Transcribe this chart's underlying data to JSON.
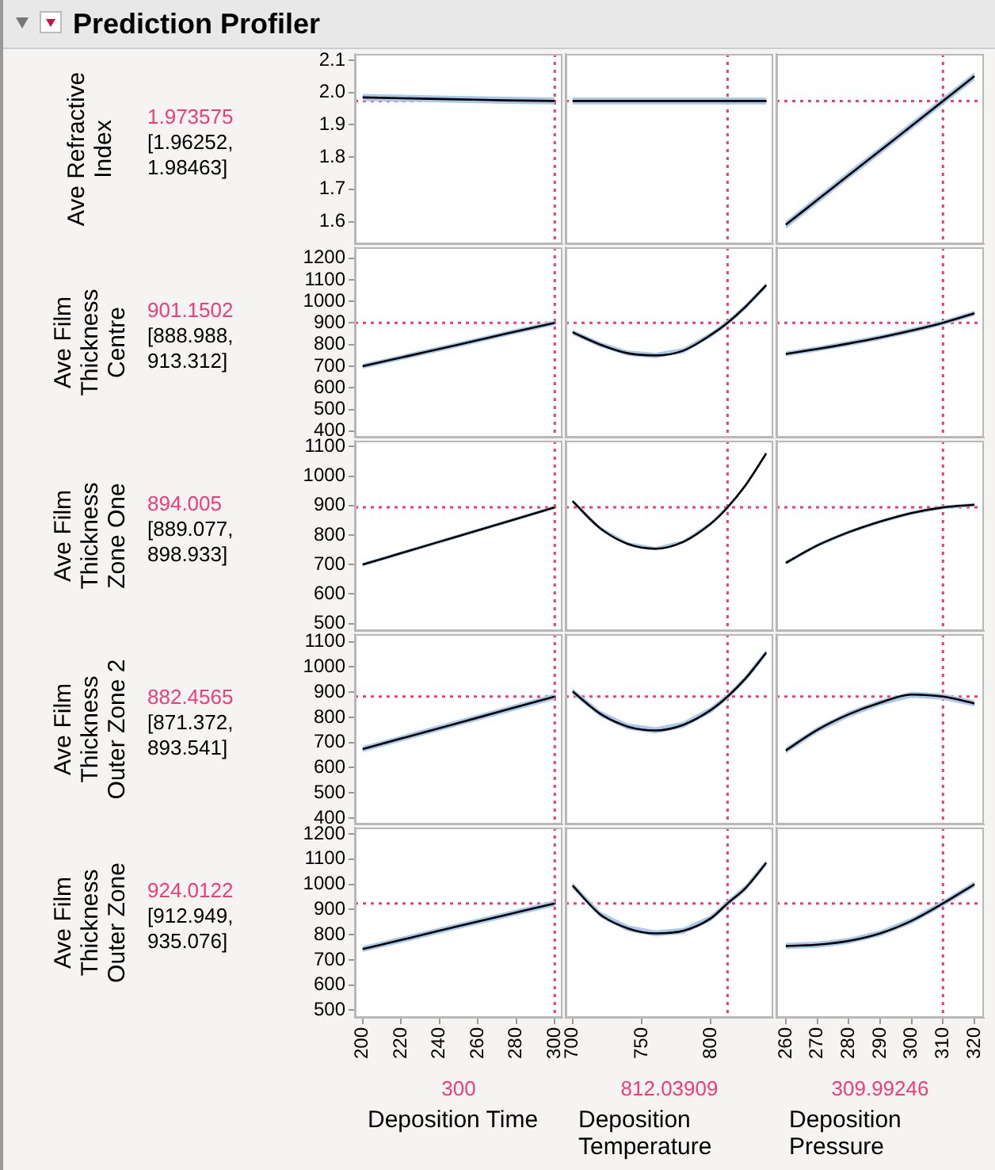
{
  "chart_data": [
    {
      "type": "line",
      "title": "Prediction Profiler",
      "ylabel": "Ave Refractive Index",
      "annotations": [
        "[1.96252, 1.98463]"
      ],
      "x": [
        200,
        225,
        250,
        275,
        300
      ],
      "series": [
        {
          "color": "#000000",
          "values": [
            1.985,
            1.982,
            1.979,
            1.976,
            1.974
          ],
          "lower": [
            1.974,
            1.971,
            1.968,
            1.965,
            1.963
          ],
          "upper": [
            1.996,
            1.993,
            1.99,
            1.987,
            1.985
          ]
        }
      ],
      "xlim": [
        196,
        304
      ],
      "xticks": [
        200,
        220,
        240,
        260,
        280,
        300
      ],
      "ylim": [
        1.53,
        2.12
      ],
      "yticks": [
        1.6,
        1.7,
        1.8,
        1.9,
        {
          "value": 2,
          "label": "2.0"
        },
        2.1
      ],
      "tick_labels": "y",
      "line_style": "solid",
      "grid": false,
      "ref_lines": [
        {
          "axis": "x",
          "value": 300,
          "color": "#f03c78",
          "line_style": "dotted"
        },
        {
          "axis": "y",
          "value": 1.973575,
          "label": "1.973575",
          "color": "#f03c78",
          "line_style": "dotted"
        }
      ]
    },
    {
      "type": "line",
      "x": [
        700,
        720,
        740,
        760,
        780,
        800,
        812,
        825,
        840
      ],
      "series": [
        {
          "color": "#000000",
          "values": [
            1.974,
            1.974,
            1.974,
            1.974,
            1.974,
            1.974,
            1.974,
            1.974,
            1.974
          ],
          "lower": [
            1.963,
            1.963,
            1.963,
            1.963,
            1.963,
            1.963,
            1.963,
            1.963,
            1.963
          ],
          "upper": [
            1.985,
            1.985,
            1.985,
            1.985,
            1.985,
            1.985,
            1.985,
            1.985,
            1.985
          ]
        }
      ],
      "xlim": [
        695,
        845
      ],
      "xticks": [
        700,
        750,
        800
      ],
      "ylim": [
        1.53,
        2.12
      ],
      "yticks": [
        1.6,
        1.7,
        1.8,
        1.9,
        2,
        2.1
      ],
      "tick_labels": false,
      "line_style": "solid",
      "grid": false,
      "ref_lines": [
        {
          "axis": "x",
          "value": 812.03909,
          "color": "#f03c78",
          "line_style": "dotted"
        },
        {
          "axis": "y",
          "value": 1.973575,
          "color": "#f03c78",
          "line_style": "dotted"
        }
      ]
    },
    {
      "type": "line",
      "x": [
        260,
        270,
        280,
        290,
        300,
        310,
        320
      ],
      "series": [
        {
          "color": "#000000",
          "values": [
            1.59,
            1.667,
            1.744,
            1.82,
            1.897,
            1.974,
            2.051
          ],
          "lower": [
            1.578,
            1.655,
            1.732,
            1.808,
            1.885,
            1.962,
            2.039
          ],
          "upper": [
            1.602,
            1.679,
            1.756,
            1.832,
            1.909,
            1.986,
            2.063
          ]
        }
      ],
      "xlim": [
        257,
        323
      ],
      "xticks": [
        260,
        270,
        280,
        290,
        300,
        310,
        320
      ],
      "ylim": [
        1.53,
        2.12
      ],
      "yticks": [
        1.6,
        1.7,
        1.8,
        1.9,
        2,
        2.1
      ],
      "tick_labels": false,
      "line_style": "solid",
      "grid": false,
      "ref_lines": [
        {
          "axis": "x",
          "value": 309.99246,
          "color": "#f03c78",
          "line_style": "dotted"
        },
        {
          "axis": "y",
          "value": 1.973575,
          "color": "#f03c78",
          "line_style": "dotted"
        }
      ]
    },
    {
      "type": "line",
      "ylabel": "Ave Film Thickness Centre",
      "annotations": [
        "[888.988, 913.312]"
      ],
      "x": [
        200,
        225,
        250,
        275,
        300
      ],
      "series": [
        {
          "color": "#000000",
          "values": [
            700,
            750,
            800,
            851,
            901
          ],
          "lower": [
            688,
            738,
            788,
            839,
            889
          ],
          "upper": [
            712,
            762,
            812,
            863,
            913
          ]
        }
      ],
      "xlim": [
        196,
        304
      ],
      "xticks": [
        200,
        220,
        240,
        260,
        280,
        300
      ],
      "ylim": [
        370,
        1250
      ],
      "yticks": [
        400,
        500,
        600,
        700,
        800,
        900,
        1000,
        1100,
        1200
      ],
      "tick_labels": "y",
      "line_style": "solid",
      "grid": false,
      "ref_lines": [
        {
          "axis": "x",
          "value": 300,
          "color": "#f03c78",
          "line_style": "dotted"
        },
        {
          "axis": "y",
          "value": 901.1502,
          "label": "901.1502",
          "color": "#f03c78",
          "line_style": "dotted"
        }
      ]
    },
    {
      "type": "line",
      "x": [
        700,
        720,
        740,
        760,
        780,
        800,
        812,
        825,
        840
      ],
      "series": [
        {
          "color": "#000000",
          "values": [
            857,
            800,
            760,
            750,
            772,
            845,
            901,
            975,
            1075
          ],
          "lower": [
            845,
            788,
            748,
            738,
            760,
            833,
            889,
            963,
            1063
          ],
          "upper": [
            869,
            812,
            772,
            762,
            784,
            857,
            913,
            987,
            1087
          ]
        }
      ],
      "xlim": [
        695,
        845
      ],
      "xticks": [
        700,
        750,
        800
      ],
      "ylim": [
        370,
        1250
      ],
      "yticks": [
        400,
        500,
        600,
        700,
        800,
        900,
        1000,
        1100,
        1200
      ],
      "tick_labels": false,
      "line_style": "solid",
      "grid": false,
      "ref_lines": [
        {
          "axis": "x",
          "value": 812.03909,
          "color": "#f03c78",
          "line_style": "dotted"
        },
        {
          "axis": "y",
          "value": 901.1502,
          "color": "#f03c78",
          "line_style": "dotted"
        }
      ]
    },
    {
      "type": "line",
      "x": [
        260,
        270,
        280,
        290,
        300,
        310,
        320
      ],
      "series": [
        {
          "color": "#000000",
          "values": [
            757,
            780,
            805,
            833,
            865,
            901,
            945
          ],
          "lower": [
            745,
            768,
            793,
            821,
            853,
            889,
            933
          ],
          "upper": [
            769,
            792,
            817,
            845,
            877,
            913,
            957
          ]
        }
      ],
      "xlim": [
        257,
        323
      ],
      "xticks": [
        260,
        270,
        280,
        290,
        300,
        310,
        320
      ],
      "ylim": [
        370,
        1250
      ],
      "yticks": [
        400,
        500,
        600,
        700,
        800,
        900,
        1000,
        1100,
        1200
      ],
      "tick_labels": false,
      "line_style": "solid",
      "grid": false,
      "ref_lines": [
        {
          "axis": "x",
          "value": 309.99246,
          "color": "#f03c78",
          "line_style": "dotted"
        },
        {
          "axis": "y",
          "value": 901.1502,
          "color": "#f03c78",
          "line_style": "dotted"
        }
      ]
    },
    {
      "type": "line",
      "ylabel": "Ave Film Thickness Zone One",
      "annotations": [
        "[889.077, 898.933]"
      ],
      "x": [
        200,
        225,
        250,
        275,
        300
      ],
      "series": [
        {
          "color": "#000000",
          "values": [
            700,
            748.5,
            797,
            845.5,
            894
          ],
          "lower": [
            694,
            742.5,
            791,
            839.5,
            888
          ],
          "upper": [
            706,
            754.5,
            803,
            851.5,
            900
          ]
        }
      ],
      "xlim": [
        196,
        304
      ],
      "xticks": [
        200,
        220,
        240,
        260,
        280,
        300
      ],
      "ylim": [
        475,
        1120
      ],
      "yticks": [
        500,
        600,
        700,
        800,
        900,
        1000,
        1100
      ],
      "tick_labels": "y",
      "line_style": "solid",
      "grid": false,
      "ref_lines": [
        {
          "axis": "x",
          "value": 300,
          "color": "#f03c78",
          "line_style": "dotted"
        },
        {
          "axis": "y",
          "value": 894.005,
          "label": "894.005",
          "color": "#f03c78",
          "line_style": "dotted"
        }
      ]
    },
    {
      "type": "line",
      "x": [
        700,
        720,
        740,
        760,
        780,
        800,
        812,
        825,
        840
      ],
      "series": [
        {
          "color": "#000000",
          "values": [
            915,
            823,
            770,
            754,
            777,
            839,
            894,
            969,
            1077
          ],
          "lower": [
            909,
            817,
            764,
            748,
            771,
            833,
            888,
            963,
            1071
          ],
          "upper": [
            921,
            829,
            776,
            760,
            783,
            845,
            900,
            975,
            1083
          ]
        }
      ],
      "xlim": [
        695,
        845
      ],
      "xticks": [
        700,
        750,
        800
      ],
      "ylim": [
        475,
        1120
      ],
      "yticks": [
        500,
        600,
        700,
        800,
        900,
        1000,
        1100
      ],
      "tick_labels": false,
      "line_style": "solid",
      "grid": false,
      "ref_lines": [
        {
          "axis": "x",
          "value": 812.03909,
          "color": "#f03c78",
          "line_style": "dotted"
        },
        {
          "axis": "y",
          "value": 894.005,
          "color": "#f03c78",
          "line_style": "dotted"
        }
      ]
    },
    {
      "type": "line",
      "x": [
        260,
        270,
        280,
        290,
        300,
        310,
        320
      ],
      "series": [
        {
          "color": "#000000",
          "values": [
            706,
            765,
            810,
            846,
            875,
            894,
            903
          ],
          "lower": [
            700,
            759,
            804,
            840,
            869,
            888,
            897
          ],
          "upper": [
            712,
            771,
            816,
            852,
            881,
            900,
            909
          ]
        }
      ],
      "xlim": [
        257,
        323
      ],
      "xticks": [
        260,
        270,
        280,
        290,
        300,
        310,
        320
      ],
      "ylim": [
        475,
        1120
      ],
      "yticks": [
        500,
        600,
        700,
        800,
        900,
        1000,
        1100
      ],
      "tick_labels": false,
      "line_style": "solid",
      "grid": false,
      "ref_lines": [
        {
          "axis": "x",
          "value": 309.99246,
          "color": "#f03c78",
          "line_style": "dotted"
        },
        {
          "axis": "y",
          "value": 894.005,
          "color": "#f03c78",
          "line_style": "dotted"
        }
      ]
    },
    {
      "type": "line",
      "ylabel": "Ave Film Thickness Outer Zone 2",
      "annotations": [
        "[871.372, 893.541]"
      ],
      "x": [
        200,
        225,
        250,
        275,
        300
      ],
      "series": [
        {
          "color": "#000000",
          "values": [
            674,
            726,
            778,
            830,
            882
          ],
          "lower": [
            662,
            714,
            766,
            818,
            870
          ],
          "upper": [
            686,
            738,
            790,
            842,
            894
          ]
        }
      ],
      "xlim": [
        196,
        304
      ],
      "xticks": [
        200,
        220,
        240,
        260,
        280,
        300
      ],
      "ylim": [
        375,
        1130
      ],
      "yticks": [
        400,
        500,
        600,
        700,
        800,
        900,
        1000,
        1100
      ],
      "tick_labels": "y",
      "line_style": "solid",
      "grid": false,
      "ref_lines": [
        {
          "axis": "x",
          "value": 300,
          "color": "#f03c78",
          "line_style": "dotted"
        },
        {
          "axis": "y",
          "value": 882.4565,
          "label": "882.4565",
          "color": "#f03c78",
          "line_style": "dotted"
        }
      ]
    },
    {
      "type": "line",
      "x": [
        700,
        720,
        740,
        760,
        780,
        800,
        812,
        825,
        840
      ],
      "series": [
        {
          "color": "#000000",
          "values": [
            903,
            814,
            763,
            748,
            770,
            829,
            882,
            954,
            1057
          ],
          "lower": [
            891,
            802,
            751,
            736,
            758,
            817,
            870,
            942,
            1045
          ],
          "upper": [
            915,
            826,
            775,
            760,
            782,
            841,
            894,
            966,
            1069
          ]
        }
      ],
      "xlim": [
        695,
        845
      ],
      "xticks": [
        700,
        750,
        800
      ],
      "ylim": [
        375,
        1130
      ],
      "yticks": [
        400,
        500,
        600,
        700,
        800,
        900,
        1000,
        1100
      ],
      "tick_labels": false,
      "line_style": "solid",
      "grid": false,
      "ref_lines": [
        {
          "axis": "x",
          "value": 812.03909,
          "color": "#f03c78",
          "line_style": "dotted"
        },
        {
          "axis": "y",
          "value": 882.4565,
          "color": "#f03c78",
          "line_style": "dotted"
        }
      ]
    },
    {
      "type": "line",
      "x": [
        260,
        270,
        280,
        290,
        300,
        310,
        320
      ],
      "series": [
        {
          "color": "#000000",
          "values": [
            668,
            750,
            812,
            858,
            890,
            882,
            855
          ],
          "lower": [
            656,
            738,
            800,
            846,
            878,
            870,
            843
          ],
          "upper": [
            680,
            762,
            824,
            870,
            902,
            894,
            867
          ]
        }
      ],
      "xlim": [
        257,
        323
      ],
      "xticks": [
        260,
        270,
        280,
        290,
        300,
        310,
        320
      ],
      "ylim": [
        375,
        1130
      ],
      "yticks": [
        400,
        500,
        600,
        700,
        800,
        900,
        1000,
        1100
      ],
      "tick_labels": false,
      "line_style": "solid",
      "grid": false,
      "ref_lines": [
        {
          "axis": "x",
          "value": 309.99246,
          "color": "#f03c78",
          "line_style": "dotted"
        },
        {
          "axis": "y",
          "value": 882.4565,
          "color": "#f03c78",
          "line_style": "dotted"
        }
      ]
    },
    {
      "type": "line",
      "ylabel": "Ave Film Thickness Outer Zone",
      "xlabel": "Deposition Time",
      "annotations": [
        "[912.949, 935.076]"
      ],
      "x": [
        200,
        225,
        250,
        275,
        300
      ],
      "series": [
        {
          "color": "#000000",
          "values": [
            743,
            788,
            834,
            879,
            924
          ],
          "lower": [
            731,
            776,
            822,
            867,
            912
          ],
          "upper": [
            755,
            800,
            846,
            891,
            936
          ]
        }
      ],
      "xlim": [
        196,
        304
      ],
      "xticks": [
        200,
        220,
        240,
        260,
        280,
        300
      ],
      "ylim": [
        470,
        1225
      ],
      "yticks": [
        500,
        600,
        700,
        800,
        900,
        1000,
        1100,
        1200
      ],
      "line_style": "solid",
      "grid": false,
      "ref_lines": [
        {
          "axis": "x",
          "value": 300,
          "label": "300",
          "color": "#f03c78",
          "line_style": "dotted"
        },
        {
          "axis": "y",
          "value": 924.0122,
          "label": "924.0122",
          "color": "#f03c78",
          "line_style": "dotted"
        }
      ]
    },
    {
      "type": "line",
      "xlabel": "Deposition Temperature",
      "x": [
        700,
        720,
        740,
        760,
        780,
        800,
        812,
        825,
        840
      ],
      "series": [
        {
          "color": "#000000",
          "values": [
            995,
            880,
            825,
            805,
            815,
            865,
            924,
            985,
            1085
          ],
          "lower": [
            983,
            868,
            813,
            793,
            803,
            853,
            912,
            973,
            1073
          ],
          "upper": [
            1007,
            892,
            837,
            817,
            827,
            877,
            936,
            997,
            1097
          ]
        }
      ],
      "xlim": [
        695,
        845
      ],
      "xticks": [
        700,
        750,
        800
      ],
      "ylim": [
        470,
        1225
      ],
      "yticks": [
        500,
        600,
        700,
        800,
        900,
        1000,
        1100,
        1200
      ],
      "tick_labels": "x",
      "line_style": "solid",
      "grid": false,
      "ref_lines": [
        {
          "axis": "x",
          "value": 812.03909,
          "label": "812.03909",
          "color": "#f03c78",
          "line_style": "dotted"
        },
        {
          "axis": "y",
          "value": 924.0122,
          "color": "#f03c78",
          "line_style": "dotted"
        }
      ]
    },
    {
      "type": "line",
      "xlabel": "Deposition Pressure",
      "x": [
        260,
        270,
        280,
        290,
        300,
        310,
        320
      ],
      "series": [
        {
          "color": "#000000",
          "values": [
            755,
            760,
            775,
            805,
            855,
            924,
            1000
          ],
          "lower": [
            743,
            748,
            763,
            793,
            843,
            912,
            988
          ],
          "upper": [
            767,
            772,
            787,
            817,
            867,
            936,
            1012
          ]
        }
      ],
      "xlim": [
        257,
        323
      ],
      "xticks": [
        260,
        270,
        280,
        290,
        300,
        310,
        320
      ],
      "ylim": [
        470,
        1225
      ],
      "yticks": [
        500,
        600,
        700,
        800,
        900,
        1000,
        1100,
        1200
      ],
      "tick_labels": "x",
      "line_style": "solid",
      "grid": false,
      "ref_lines": [
        {
          "axis": "x",
          "value": 309.99246,
          "label": "309.99246",
          "color": "#f03c78",
          "line_style": "dotted"
        },
        {
          "axis": "y",
          "value": 924.0122,
          "color": "#f03c78",
          "line_style": "dotted"
        }
      ]
    }
  ]
}
